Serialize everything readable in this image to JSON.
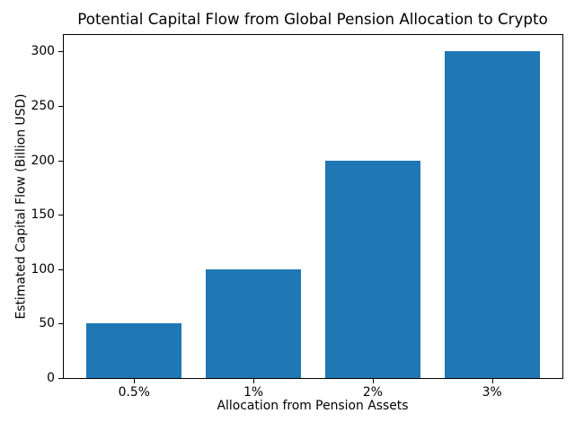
{
  "chart_data": {
    "type": "bar",
    "title": "Potential Capital Flow from Global Pension Allocation to Crypto",
    "xlabel": "Allocation from Pension Assets",
    "ylabel": "Estimated Capital Flow (Billion USD)",
    "categories": [
      "0.5%",
      "1%",
      "2%",
      "3%"
    ],
    "values": [
      50,
      100,
      200,
      300
    ],
    "ylim": [
      0,
      315
    ],
    "yticks": [
      0,
      50,
      100,
      150,
      200,
      250,
      300
    ],
    "bar_color": "#1f77b4",
    "background_color": "#ffffff",
    "text_color": "#000000",
    "grid": false,
    "legend_position": "none"
  }
}
